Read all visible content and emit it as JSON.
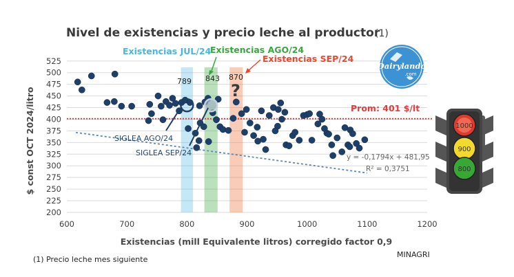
{
  "chart_data": {
    "type": "scatter",
    "title": "Nivel de existencias y precio leche al productor",
    "title_note": "(1)",
    "xlabel": "Existencias (mill Equivalente litros) corregido factor 0,9",
    "ylabel": "$ const OCT 2024/litro",
    "xlim": [
      600,
      1200
    ],
    "ylim": [
      200,
      535
    ],
    "x_ticks": [
      600,
      700,
      800,
      900,
      1000,
      1100,
      1200
    ],
    "y_ticks": [
      200,
      225,
      250,
      275,
      300,
      325,
      350,
      375,
      400,
      425,
      450,
      475,
      500,
      525
    ],
    "grid": "horizontal",
    "points": [
      [
        618,
        480
      ],
      [
        625,
        463
      ],
      [
        641,
        493
      ],
      [
        680,
        497
      ],
      [
        667,
        436
      ],
      [
        679,
        438
      ],
      [
        691,
        428
      ],
      [
        708,
        428
      ],
      [
        738,
        432
      ],
      [
        752,
        450
      ],
      [
        757,
        428
      ],
      [
        765,
        438
      ],
      [
        771,
        430
      ],
      [
        776,
        445
      ],
      [
        781,
        434
      ],
      [
        741,
        412
      ],
      [
        736,
        397
      ],
      [
        760,
        399
      ],
      [
        787,
        418
      ],
      [
        791,
        436
      ],
      [
        797,
        441
      ],
      [
        805,
        436
      ],
      [
        802,
        380
      ],
      [
        814,
        370
      ],
      [
        820,
        354
      ],
      [
        816,
        339
      ],
      [
        822,
        392
      ],
      [
        828,
        384
      ],
      [
        821,
        429
      ],
      [
        830,
        437
      ],
      [
        835,
        445
      ],
      [
        843,
        414
      ],
      [
        849,
        399
      ],
      [
        852,
        443
      ],
      [
        855,
        384
      ],
      [
        860,
        378
      ],
      [
        869,
        376
      ],
      [
        877,
        402
      ],
      [
        882,
        437
      ],
      [
        891,
        412
      ],
      [
        896,
        372
      ],
      [
        899,
        421
      ],
      [
        905,
        392
      ],
      [
        911,
        365
      ],
      [
        917,
        383
      ],
      [
        924,
        418
      ],
      [
        937,
        408
      ],
      [
        944,
        425
      ],
      [
        952,
        421
      ],
      [
        956,
        435
      ],
      [
        958,
        400
      ],
      [
        963,
        415
      ],
      [
        951,
        385
      ],
      [
        947,
        375
      ],
      [
        927,
        357
      ],
      [
        931,
        335
      ],
      [
        918,
        353
      ],
      [
        965,
        345
      ],
      [
        970,
        343
      ],
      [
        976,
        365
      ],
      [
        980,
        372
      ],
      [
        987,
        355
      ],
      [
        994,
        408
      ],
      [
        1000,
        410
      ],
      [
        1004,
        412
      ],
      [
        1008,
        355
      ],
      [
        1018,
        390
      ],
      [
        1021,
        411
      ],
      [
        1025,
        400
      ],
      [
        1029,
        380
      ],
      [
        1033,
        370
      ],
      [
        1036,
        368
      ],
      [
        1041,
        345
      ],
      [
        1043,
        322
      ],
      [
        1050,
        360
      ],
      [
        1063,
        382
      ],
      [
        1068,
        345
      ],
      [
        1072,
        377
      ],
      [
        1076,
        369
      ],
      [
        1082,
        348
      ],
      [
        1087,
        338
      ],
      [
        1096,
        356
      ],
      [
        1071,
        341
      ],
      [
        1058,
        330
      ],
      [
        836,
        352
      ]
    ],
    "trendline": {
      "slope": -0.1794,
      "intercept": 481.95,
      "x_range": [
        615,
        1100
      ]
    },
    "equation": "y = -0,1794x + 481,95",
    "r_squared": "R² = 0,3751",
    "average": {
      "value": 401,
      "label": "Prom: 401 $/lt"
    },
    "bands": [
      {
        "label": "Existencias JUL/24",
        "value_label": "789",
        "center": 800,
        "width": 20,
        "color": "#59b9e6"
      },
      {
        "label": "Existencias AGO/24",
        "value_label": "843",
        "center": 840,
        "width": 22,
        "color": "#3aa63e"
      },
      {
        "label": "Existencias SEP/24",
        "value_label": "870",
        "center": 882,
        "width": 22,
        "color": "#ec6c2e"
      }
    ],
    "highlights": [
      {
        "name": "SIGLEA AGO/24",
        "x": 800,
        "y": 430
      },
      {
        "name": "SIGLEA SEP/24",
        "x": 840,
        "y": 430
      }
    ],
    "question_mark": "?",
    "footnote": "(1) Precio leche mes siguiente",
    "source": "MINAGRI"
  },
  "logo": {
    "name": "Dairylando",
    "suffix": ".com"
  },
  "traffic_light": {
    "top": "1000",
    "middle": "900",
    "bottom": "800"
  },
  "colors": {
    "point": "#1d3f68",
    "trend": "#5b86b5",
    "average": "#e8383b",
    "grid": "#dadada"
  }
}
